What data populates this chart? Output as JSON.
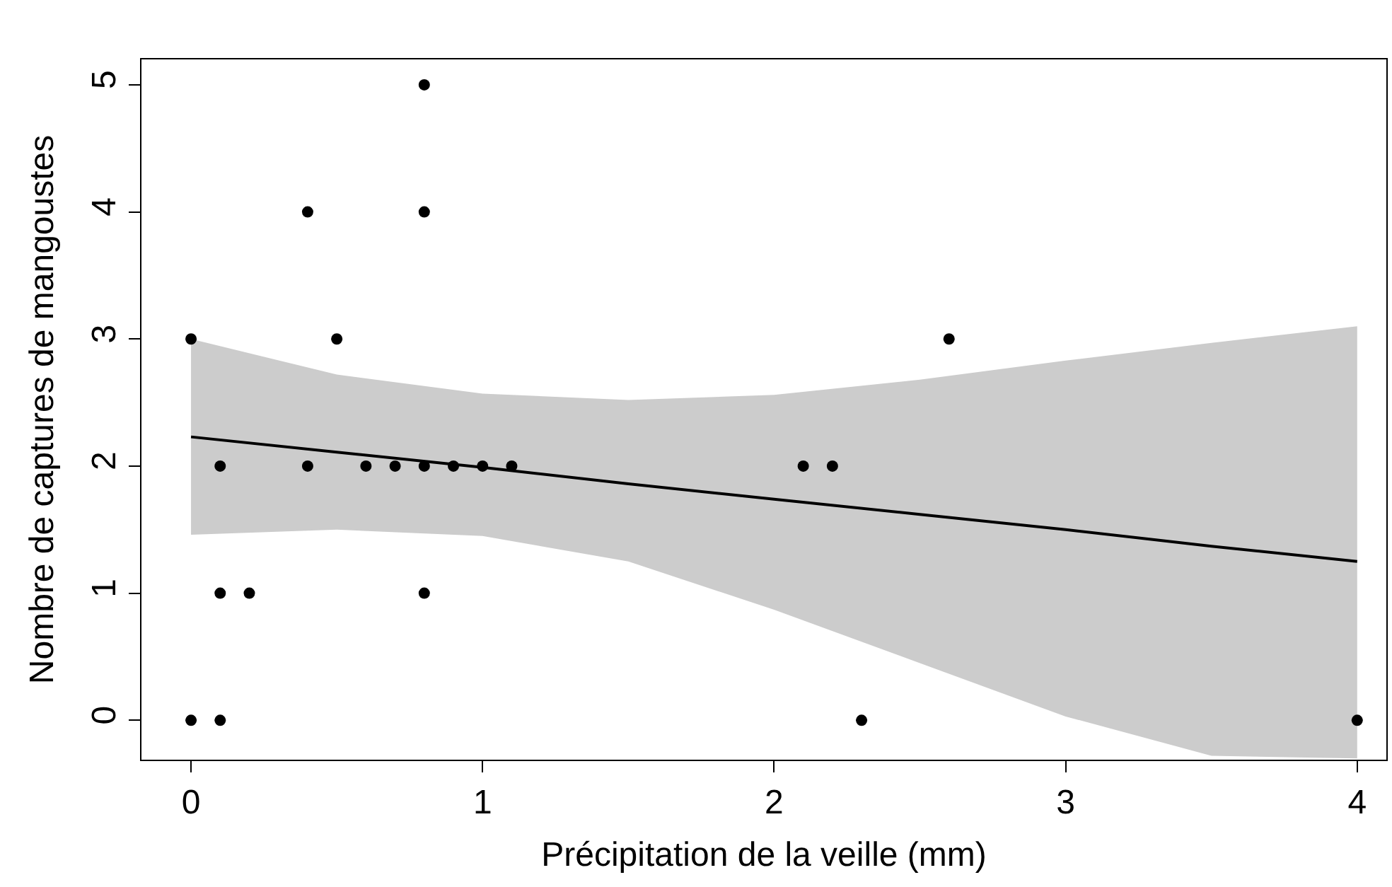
{
  "chart_data": {
    "type": "scatter",
    "xlabel": "Précipitation de la veille (mm)",
    "ylabel": "Nombre de captures de mangoustes",
    "xlim": [
      -0.17,
      4.1
    ],
    "ylim": [
      -0.31,
      5.2
    ],
    "xticks": [
      0,
      1,
      2,
      3,
      4
    ],
    "yticks": [
      0,
      1,
      2,
      3,
      4,
      5
    ],
    "grid": false,
    "legend": false,
    "marker": "circle",
    "series": [
      {
        "type": "line",
        "color": "#000000",
        "line_style": "solid",
        "marker": "none",
        "x": [
          0,
          0.5,
          1,
          1.5,
          2,
          2.5,
          3,
          3.5,
          4
        ],
        "values": [
          2.23,
          2.11,
          1.99,
          1.86,
          1.74,
          1.62,
          1.5,
          1.37,
          1.25
        ],
        "upper": [
          3.0,
          2.72,
          2.57,
          2.52,
          2.56,
          2.68,
          2.83,
          2.97,
          3.1
        ],
        "lower": [
          1.46,
          1.5,
          1.45,
          1.25,
          0.87,
          0.45,
          0.03,
          -0.28,
          -0.3
        ]
      },
      {
        "color": "#000000",
        "x": [
          0,
          0,
          0.1,
          0.1,
          0.1,
          0.2,
          0.4,
          0.4,
          0.5,
          0.6,
          0.7,
          0.8,
          0.8,
          0.8,
          0.8,
          0.9,
          1.0,
          1.1,
          2.1,
          2.2,
          2.3,
          2.6,
          4.0
        ],
        "values": [
          3,
          0,
          2,
          1,
          0,
          1,
          4,
          2,
          3,
          2,
          2,
          5,
          4,
          2,
          1,
          2,
          2,
          2,
          2,
          2,
          0,
          3,
          0
        ]
      }
    ]
  }
}
